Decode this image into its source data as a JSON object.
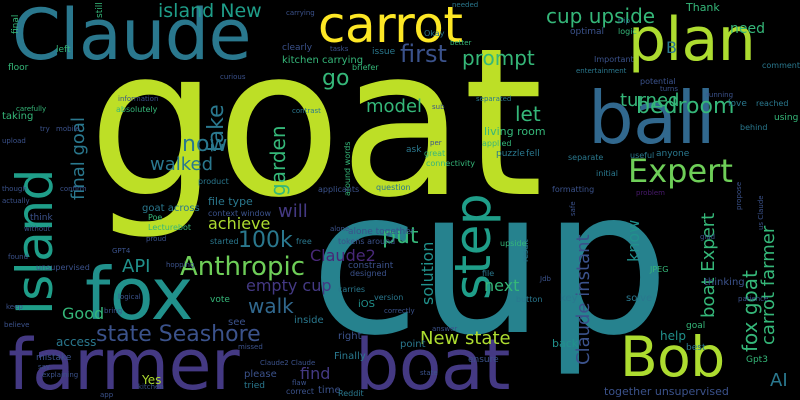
{
  "palette": {
    "lime": "#bddf26",
    "yellow": "#fde725",
    "green": "#35b779",
    "green2": "#6ece58",
    "teal": "#21918c",
    "teal2": "#1f9e89",
    "blue": "#2a788e",
    "blue2": "#31688e",
    "indigo": "#3b528b",
    "purple": "#443983",
    "violet": "#482878",
    "dark": "#481a6c",
    "mint": "#addc30",
    "aqua": "#26828e"
  },
  "words": [
    {
      "text": "goat",
      "color": "lime"
    },
    {
      "text": "cup",
      "color": "aqua"
    },
    {
      "text": "farmer",
      "color": "purple"
    },
    {
      "text": "boat",
      "color": "purple"
    },
    {
      "text": "Claude",
      "color": "blue"
    },
    {
      "text": "carrot",
      "color": "yellow"
    },
    {
      "text": "plan",
      "color": "mint"
    },
    {
      "text": "ball",
      "color": "blue2"
    },
    {
      "text": "fox",
      "color": "teal"
    },
    {
      "text": "Bob",
      "color": "mint"
    },
    {
      "text": "Island",
      "color": "teal2"
    },
    {
      "text": "step",
      "color": "teal2"
    },
    {
      "text": "Expert",
      "color": "green2"
    },
    {
      "text": "bedroom",
      "color": "green"
    },
    {
      "text": "cup upside",
      "color": "green"
    },
    {
      "text": "island New",
      "color": "teal2"
    },
    {
      "text": "first",
      "color": "indigo"
    },
    {
      "text": "prompt",
      "color": "green"
    },
    {
      "text": "go",
      "color": "green"
    },
    {
      "text": "take",
      "color": "blue"
    },
    {
      "text": "model",
      "color": "green"
    },
    {
      "text": "let",
      "color": "green"
    },
    {
      "text": "turned",
      "color": "green"
    },
    {
      "text": "now",
      "color": "blue"
    },
    {
      "text": "final goal",
      "color": "blue"
    },
    {
      "text": "garden",
      "color": "green"
    },
    {
      "text": "walked",
      "color": "blue"
    },
    {
      "text": "achieve",
      "color": "mint"
    },
    {
      "text": "will",
      "color": "purple"
    },
    {
      "text": "100k",
      "color": "blue"
    },
    {
      "text": "Anthropic",
      "color": "green2"
    },
    {
      "text": "API",
      "color": "teal"
    },
    {
      "text": "Claude2",
      "color": "violet"
    },
    {
      "text": "put",
      "color": "green"
    },
    {
      "text": "walk",
      "color": "blue2"
    },
    {
      "text": "empty cup",
      "color": "purple"
    },
    {
      "text": "state Seashore",
      "color": "indigo"
    },
    {
      "text": "Good",
      "color": "green"
    },
    {
      "text": "find",
      "color": "purple"
    },
    {
      "text": "New state",
      "color": "mint"
    },
    {
      "text": "next",
      "color": "green"
    },
    {
      "text": "solution",
      "color": "teal"
    },
    {
      "text": "Claude instant",
      "color": "indigo"
    },
    {
      "text": "boat Expert",
      "color": "green"
    },
    {
      "text": "know",
      "color": "teal"
    },
    {
      "text": "fox goat",
      "color": "green"
    },
    {
      "text": "carrot farmer",
      "color": "green"
    },
    {
      "text": "AI",
      "color": "blue"
    },
    {
      "text": "need",
      "color": "green"
    },
    {
      "text": "B",
      "color": "blue"
    },
    {
      "text": "file type",
      "color": "blue"
    },
    {
      "text": "goat across",
      "color": "blue"
    },
    {
      "text": "alone together",
      "color": "indigo"
    },
    {
      "text": "together unsupervised",
      "color": "indigo"
    },
    {
      "text": "living room",
      "color": "green"
    },
    {
      "text": "Yes",
      "color": "mint"
    },
    {
      "text": "help",
      "color": "teal"
    },
    {
      "text": "Finally",
      "color": "blue"
    },
    {
      "text": "kitchen carrying",
      "color": "green"
    },
    {
      "text": "Thank",
      "color": "green"
    },
    {
      "text": "iOS",
      "color": "teal"
    },
    {
      "text": "access",
      "color": "blue"
    },
    {
      "text": "point",
      "color": "blue"
    },
    {
      "text": "ensure",
      "color": "indigo"
    },
    {
      "text": "back",
      "color": "teal"
    },
    {
      "text": "right",
      "color": "indigo"
    },
    {
      "text": "inside",
      "color": "blue"
    },
    {
      "text": "see",
      "color": "indigo"
    },
    {
      "text": "vote",
      "color": "green"
    },
    {
      "text": "key",
      "color": "blue"
    },
    {
      "text": "solve",
      "color": "blue"
    },
    {
      "text": "please",
      "color": "indigo"
    },
    {
      "text": "time",
      "color": "indigo"
    },
    {
      "text": "tried",
      "color": "blue"
    },
    {
      "text": "Reddit",
      "color": "blue"
    },
    {
      "text": "correct",
      "color": "indigo"
    },
    {
      "text": "JPEG",
      "color": "green"
    },
    {
      "text": "thinking",
      "color": "indigo"
    },
    {
      "text": "Gpt3",
      "color": "green"
    },
    {
      "text": "best",
      "color": "blue"
    },
    {
      "text": "goal",
      "color": "green"
    },
    {
      "text": "mistake",
      "color": "indigo"
    },
    {
      "text": "carries",
      "color": "blue"
    },
    {
      "text": "version",
      "color": "blue"
    },
    {
      "text": "button",
      "color": "blue"
    },
    {
      "text": "question",
      "color": "blue"
    },
    {
      "text": "tokens around",
      "color": "indigo"
    },
    {
      "text": "context window",
      "color": "indigo"
    },
    {
      "text": "Poe",
      "color": "green"
    },
    {
      "text": "Lecturebot",
      "color": "green"
    },
    {
      "text": "started",
      "color": "blue"
    },
    {
      "text": "free",
      "color": "blue"
    },
    {
      "text": "constraint",
      "color": "indigo"
    },
    {
      "text": "designed",
      "color": "indigo"
    },
    {
      "text": "file",
      "color": "blue"
    },
    {
      "text": "result",
      "color": "blue"
    },
    {
      "text": "upside",
      "color": "green"
    },
    {
      "text": "around words",
      "color": "green"
    },
    {
      "text": "product",
      "color": "blue"
    },
    {
      "text": "applicants",
      "color": "indigo"
    },
    {
      "text": "ask",
      "color": "blue"
    },
    {
      "text": "great",
      "color": "green"
    },
    {
      "text": "connectivity",
      "color": "green"
    },
    {
      "text": "applied",
      "color": "green"
    },
    {
      "text": "puzzle",
      "color": "blue"
    },
    {
      "text": "fell",
      "color": "blue"
    },
    {
      "text": "separate",
      "color": "blue"
    },
    {
      "text": "initial",
      "color": "blue"
    },
    {
      "text": "formatting",
      "color": "indigo"
    },
    {
      "text": "problem",
      "color": "dark"
    },
    {
      "text": "anyone",
      "color": "blue"
    },
    {
      "text": "useful",
      "color": "blue"
    },
    {
      "text": "love",
      "color": "blue"
    },
    {
      "text": "reached",
      "color": "blue"
    },
    {
      "text": "behind",
      "color": "blue"
    },
    {
      "text": "using",
      "color": "green"
    },
    {
      "text": "comment",
      "color": "blue"
    },
    {
      "text": "optimal",
      "color": "indigo"
    },
    {
      "text": "logic",
      "color": "green"
    },
    {
      "text": "trip",
      "color": "blue"
    },
    {
      "text": "Important",
      "color": "indigo"
    },
    {
      "text": "entertainment",
      "color": "blue"
    },
    {
      "text": "still",
      "color": "green"
    },
    {
      "text": "tasks",
      "color": "indigo"
    },
    {
      "text": "clearly",
      "color": "indigo"
    },
    {
      "text": "briefer",
      "color": "green"
    },
    {
      "text": "issue",
      "color": "blue"
    },
    {
      "text": "Okay",
      "color": "blue"
    },
    {
      "text": "better",
      "color": "green"
    },
    {
      "text": "needed",
      "color": "blue"
    },
    {
      "text": "carrying",
      "color": "indigo"
    },
    {
      "text": "separated",
      "color": "blue"
    },
    {
      "text": "potential",
      "color": "indigo"
    },
    {
      "text": "turns",
      "color": "indigo"
    },
    {
      "text": "running",
      "color": "indigo"
    },
    {
      "text": "information",
      "color": "indigo"
    },
    {
      "text": "absolutely",
      "color": "green"
    },
    {
      "text": "contrast",
      "color": "blue"
    },
    {
      "text": "curious",
      "color": "indigo"
    },
    {
      "text": "taking",
      "color": "green"
    },
    {
      "text": "carefully",
      "color": "green"
    },
    {
      "text": "floor",
      "color": "green"
    },
    {
      "text": "left",
      "color": "green"
    },
    {
      "text": "final",
      "color": "green"
    },
    {
      "text": "explaining",
      "color": "indigo"
    },
    {
      "text": "sub",
      "color": "indigo"
    },
    {
      "text": "per",
      "color": "indigo"
    },
    {
      "text": "mobile",
      "color": "indigo"
    },
    {
      "text": "try",
      "color": "indigo"
    },
    {
      "text": "upload",
      "color": "indigo"
    },
    {
      "text": "confirm",
      "color": "indigo"
    },
    {
      "text": "though",
      "color": "indigo"
    },
    {
      "text": "actually",
      "color": "indigo"
    },
    {
      "text": "think",
      "color": "indigo"
    },
    {
      "text": "without",
      "color": "indigo"
    },
    {
      "text": "found",
      "color": "indigo"
    },
    {
      "text": "unsupervised",
      "color": "indigo"
    },
    {
      "text": "keep",
      "color": "indigo"
    },
    {
      "text": "believe",
      "color": "indigo"
    },
    {
      "text": "say",
      "color": "indigo"
    },
    {
      "text": "logical",
      "color": "indigo"
    },
    {
      "text": "bring",
      "color": "indigo"
    },
    {
      "text": "app",
      "color": "indigo"
    },
    {
      "text": "kitchen",
      "color": "indigo"
    },
    {
      "text": "proud",
      "color": "indigo"
    },
    {
      "text": "hopping",
      "color": "indigo"
    },
    {
      "text": "flaw",
      "color": "indigo"
    },
    {
      "text": "Claude2 Claude",
      "color": "indigo"
    },
    {
      "text": "missed",
      "color": "indigo"
    },
    {
      "text": "correctly",
      "color": "indigo"
    },
    {
      "text": "answer",
      "color": "indigo"
    },
    {
      "text": "safe",
      "color": "indigo"
    },
    {
      "text": "us Claude",
      "color": "indigo"
    },
    {
      "text": "glad",
      "color": "indigo"
    },
    {
      "text": "propose",
      "color": "indigo"
    },
    {
      "text": "patience",
      "color": "indigo"
    },
    {
      "text": "GPT4",
      "color": "indigo"
    },
    {
      "text": "Jdb",
      "color": "indigo"
    },
    {
      "text": "alone",
      "color": "indigo"
    },
    {
      "text": "state",
      "color": "indigo"
    }
  ]
}
